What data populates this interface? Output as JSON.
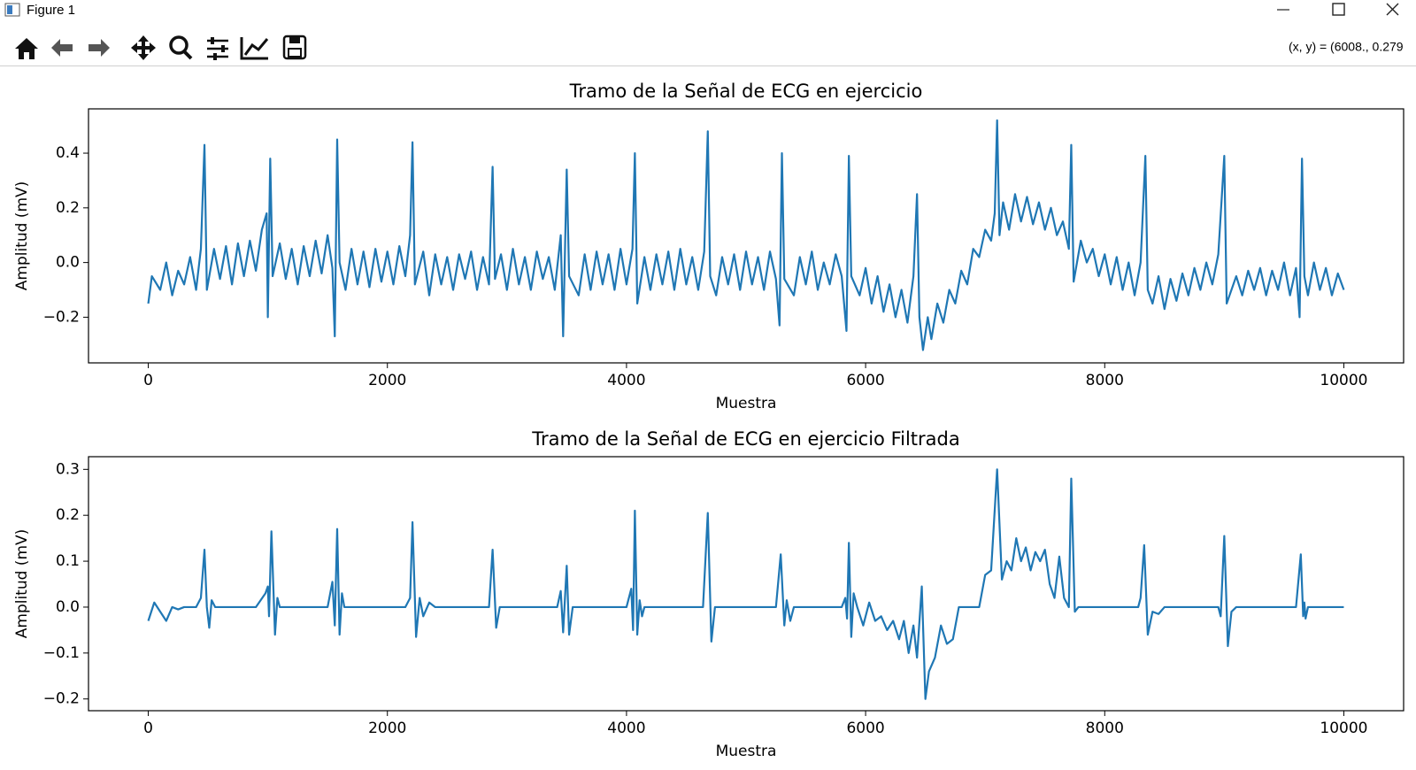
{
  "window": {
    "title": "Figure 1",
    "coordinates": "(x, y) = (6008., 0.279"
  },
  "chart_data": [
    {
      "type": "line",
      "title": "Tramo de la Señal de ECG en ejercicio",
      "xlabel": "Muestra",
      "ylabel": "Amplitud (mV)",
      "color": "#1f77b4",
      "grid": false,
      "xlim": [
        -500,
        10500
      ],
      "ylim": [
        -0.367,
        0.562
      ],
      "xticks": [
        0,
        2000,
        4000,
        6000,
        8000,
        10000
      ],
      "yticks": [
        {
          "value": -0.2,
          "label": "−0.2"
        },
        {
          "value": 0,
          "label": "0.0"
        },
        0.2,
        0.4
      ],
      "x": [
        0,
        30,
        100,
        150,
        200,
        250,
        300,
        350,
        400,
        440,
        470,
        490,
        550,
        600,
        650,
        700,
        750,
        800,
        850,
        900,
        950,
        990,
        1000,
        1020,
        1040,
        1100,
        1150,
        1200,
        1250,
        1300,
        1350,
        1400,
        1450,
        1500,
        1540,
        1560,
        1580,
        1600,
        1650,
        1700,
        1750,
        1800,
        1850,
        1900,
        1950,
        2000,
        2050,
        2100,
        2150,
        2190,
        2210,
        2230,
        2300,
        2350,
        2400,
        2450,
        2500,
        2550,
        2600,
        2650,
        2700,
        2750,
        2800,
        2850,
        2880,
        2900,
        2950,
        3000,
        3050,
        3100,
        3150,
        3200,
        3250,
        3300,
        3350,
        3400,
        3450,
        3470,
        3500,
        3520,
        3600,
        3650,
        3700,
        3750,
        3800,
        3850,
        3900,
        3950,
        4000,
        4050,
        4070,
        4090,
        4150,
        4200,
        4250,
        4300,
        4350,
        4400,
        4450,
        4500,
        4550,
        4600,
        4650,
        4680,
        4700,
        4750,
        4800,
        4850,
        4900,
        4950,
        5000,
        5050,
        5100,
        5150,
        5200,
        5250,
        5280,
        5300,
        5320,
        5400,
        5450,
        5500,
        5550,
        5600,
        5650,
        5700,
        5750,
        5800,
        5840,
        5860,
        5880,
        5950,
        6000,
        6050,
        6100,
        6150,
        6200,
        6250,
        6300,
        6350,
        6400,
        6430,
        6450,
        6480,
        6520,
        6550,
        6600,
        6650,
        6700,
        6750,
        6800,
        6850,
        6900,
        6950,
        7000,
        7050,
        7080,
        7100,
        7120,
        7150,
        7200,
        7250,
        7300,
        7350,
        7400,
        7450,
        7500,
        7550,
        7600,
        7650,
        7700,
        7720,
        7740,
        7800,
        7850,
        7900,
        7950,
        8000,
        8050,
        8100,
        8150,
        8200,
        8250,
        8300,
        8340,
        8360,
        8400,
        8450,
        8500,
        8550,
        8600,
        8650,
        8700,
        8750,
        8800,
        8850,
        8900,
        8950,
        9000,
        9020,
        9100,
        9150,
        9200,
        9250,
        9300,
        9350,
        9400,
        9450,
        9500,
        9550,
        9600,
        9630,
        9650,
        9670,
        9700,
        9750,
        9800,
        9850,
        9900,
        9950,
        10000
      ],
      "values": [
        -0.15,
        -0.05,
        -0.1,
        0.0,
        -0.12,
        -0.03,
        -0.08,
        0.02,
        -0.1,
        0.05,
        0.43,
        -0.1,
        0.05,
        -0.06,
        0.06,
        -0.08,
        0.07,
        -0.05,
        0.08,
        -0.03,
        0.12,
        0.18,
        -0.2,
        0.38,
        -0.05,
        0.07,
        -0.06,
        0.05,
        -0.08,
        0.06,
        -0.05,
        0.08,
        -0.04,
        0.1,
        -0.02,
        -0.27,
        0.45,
        0.0,
        -0.1,
        0.05,
        -0.08,
        0.04,
        -0.09,
        0.05,
        -0.07,
        0.04,
        -0.08,
        0.06,
        -0.05,
        0.1,
        0.44,
        -0.08,
        0.04,
        -0.12,
        0.03,
        -0.08,
        0.02,
        -0.1,
        0.03,
        -0.06,
        0.04,
        -0.1,
        0.02,
        -0.08,
        0.35,
        -0.06,
        0.03,
        -0.1,
        0.05,
        -0.08,
        0.02,
        -0.1,
        0.04,
        -0.06,
        0.02,
        -0.1,
        0.1,
        -0.27,
        0.34,
        -0.05,
        -0.12,
        0.03,
        -0.1,
        0.04,
        -0.08,
        0.03,
        -0.1,
        0.05,
        -0.08,
        0.05,
        0.4,
        -0.15,
        0.02,
        -0.1,
        0.03,
        -0.08,
        0.04,
        -0.1,
        0.05,
        -0.08,
        0.02,
        -0.1,
        0.04,
        0.48,
        -0.05,
        -0.12,
        0.02,
        -0.08,
        0.03,
        -0.1,
        0.04,
        -0.08,
        0.02,
        -0.1,
        0.04,
        -0.06,
        -0.23,
        0.4,
        -0.06,
        -0.12,
        0.02,
        -0.08,
        0.04,
        -0.1,
        0.0,
        -0.08,
        0.03,
        -0.05,
        -0.25,
        0.39,
        -0.05,
        -0.12,
        -0.02,
        -0.15,
        -0.05,
        -0.18,
        -0.08,
        -0.2,
        -0.1,
        -0.22,
        -0.05,
        0.25,
        -0.2,
        -0.32,
        -0.2,
        -0.28,
        -0.15,
        -0.22,
        -0.1,
        -0.15,
        -0.03,
        -0.08,
        0.05,
        0.02,
        0.12,
        0.08,
        0.18,
        0.52,
        0.1,
        0.22,
        0.12,
        0.25,
        0.15,
        0.24,
        0.14,
        0.22,
        0.12,
        0.2,
        0.1,
        0.15,
        0.05,
        0.43,
        -0.07,
        0.08,
        0.0,
        0.05,
        -0.05,
        0.03,
        -0.08,
        0.02,
        -0.1,
        0.0,
        -0.12,
        0.0,
        0.39,
        -0.1,
        -0.15,
        -0.05,
        -0.17,
        -0.06,
        -0.14,
        -0.04,
        -0.12,
        -0.02,
        -0.1,
        0.0,
        -0.08,
        0.03,
        0.39,
        -0.15,
        -0.05,
        -0.12,
        -0.03,
        -0.1,
        -0.02,
        -0.12,
        -0.03,
        -0.1,
        0.0,
        -0.12,
        -0.02,
        -0.2,
        0.38,
        -0.05,
        -0.12,
        0.0,
        -0.1,
        -0.02,
        -0.12,
        -0.04,
        -0.1
      ]
    },
    {
      "type": "line",
      "title": "Tramo de la Señal de ECG en ejercicio Filtrada",
      "xlabel": "Muestra",
      "ylabel": "Amplitud (mV)",
      "color": "#1f77b4",
      "grid": false,
      "xlim": [
        -500,
        10500
      ],
      "ylim": [
        -0.2256,
        0.3276
      ],
      "xticks": [
        0,
        2000,
        4000,
        6000,
        8000,
        10000
      ],
      "yticks": [
        {
          "value": -0.2,
          "label": "−0.2"
        },
        {
          "value": -0.1,
          "label": "−0.1"
        },
        {
          "value": 0,
          "label": "0.0"
        },
        0.1,
        0.2,
        0.3
      ],
      "x": [
        0,
        50,
        100,
        150,
        200,
        250,
        300,
        400,
        440,
        470,
        490,
        510,
        530,
        560,
        900,
        980,
        1000,
        1010,
        1030,
        1060,
        1080,
        1100,
        1500,
        1540,
        1560,
        1580,
        1600,
        1620,
        1640,
        2150,
        2190,
        2210,
        2240,
        2270,
        2300,
        2350,
        2400,
        2850,
        2880,
        2910,
        2940,
        3420,
        3450,
        3470,
        3500,
        3520,
        3550,
        4000,
        4040,
        4055,
        4070,
        4090,
        4110,
        4130,
        4150,
        4640,
        4680,
        4710,
        4740,
        5250,
        5290,
        5320,
        5340,
        5370,
        5400,
        5800,
        5830,
        5845,
        5860,
        5880,
        5900,
        5930,
        5980,
        6030,
        6080,
        6130,
        6180,
        6230,
        6280,
        6320,
        6360,
        6400,
        6430,
        6470,
        6500,
        6530,
        6580,
        6630,
        6680,
        6730,
        6780,
        6950,
        7000,
        7050,
        7100,
        7140,
        7180,
        7220,
        7260,
        7300,
        7340,
        7380,
        7420,
        7460,
        7500,
        7540,
        7580,
        7620,
        7660,
        7700,
        7720,
        7750,
        7780,
        8000,
        8280,
        8300,
        8330,
        8360,
        8400,
        8450,
        8500,
        8950,
        8970,
        9000,
        9030,
        9060,
        9100,
        9600,
        9640,
        9660,
        9670,
        9680,
        9700,
        10000
      ],
      "values": [
        -0.03,
        0.01,
        -0.01,
        -0.03,
        0.0,
        -0.005,
        0.0,
        0.0,
        0.02,
        0.125,
        0.0,
        -0.045,
        0.015,
        0.0,
        0.0,
        0.03,
        0.045,
        -0.02,
        0.165,
        -0.06,
        0.02,
        0.0,
        0.0,
        0.055,
        -0.04,
        0.17,
        -0.06,
        0.03,
        0.0,
        0.0,
        0.02,
        0.185,
        -0.065,
        0.02,
        -0.02,
        0.01,
        0.0,
        0.0,
        0.125,
        -0.045,
        0.0,
        0.0,
        0.035,
        -0.055,
        0.09,
        -0.06,
        0.0,
        0.0,
        0.04,
        -0.05,
        0.21,
        -0.06,
        0.015,
        -0.02,
        0.0,
        0.0,
        0.205,
        -0.075,
        0.0,
        0.0,
        0.115,
        -0.04,
        0.015,
        -0.03,
        0.0,
        0.0,
        0.02,
        -0.025,
        0.14,
        -0.065,
        0.03,
        0.0,
        -0.04,
        0.01,
        -0.03,
        -0.02,
        -0.05,
        -0.03,
        -0.07,
        -0.03,
        -0.1,
        -0.04,
        -0.11,
        0.045,
        -0.2,
        -0.14,
        -0.11,
        -0.04,
        -0.08,
        -0.07,
        0.0,
        0.0,
        0.07,
        0.08,
        0.3,
        0.06,
        0.1,
        0.08,
        0.15,
        0.1,
        0.13,
        0.08,
        0.12,
        0.1,
        0.125,
        0.05,
        0.02,
        0.11,
        0.02,
        0.0,
        0.28,
        -0.01,
        0.0,
        0.0,
        0.0,
        0.02,
        0.135,
        -0.06,
        -0.01,
        -0.015,
        0.0,
        0.0,
        -0.02,
        0.155,
        -0.085,
        -0.01,
        0.0,
        0.0,
        0.115,
        -0.02,
        0.01,
        -0.025,
        0.0,
        0.0
      ]
    }
  ]
}
